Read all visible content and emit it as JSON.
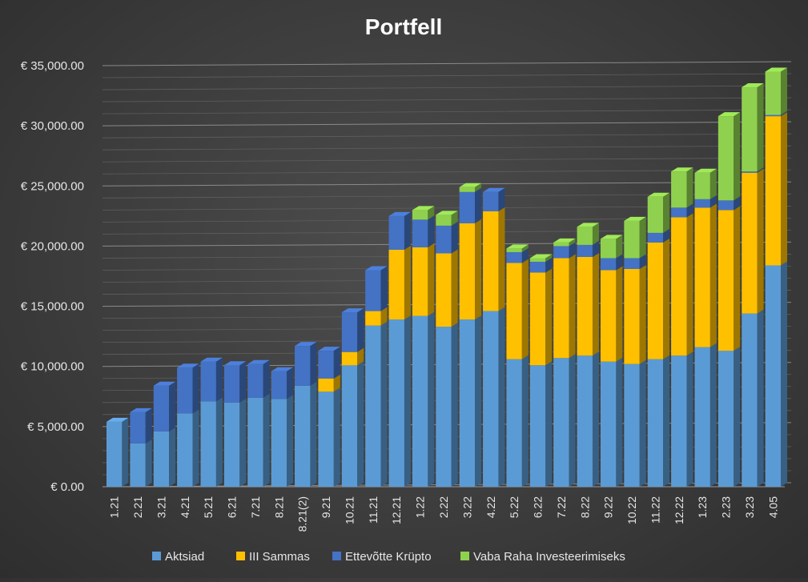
{
  "chart_data": {
    "type": "bar",
    "stacked": true,
    "title": "Portfell",
    "xlabel": "",
    "ylabel": "",
    "ylim": [
      0,
      35000
    ],
    "y_ticks": [
      0,
      5000,
      10000,
      15000,
      20000,
      25000,
      30000,
      35000
    ],
    "y_tick_labels": [
      "€ 0.00",
      "€ 5,000.00",
      "€ 10,000.00",
      "€ 15,000.00",
      "€ 20,000.00",
      "€ 25,000.00",
      "€ 30,000.00",
      "€ 35,000.00"
    ],
    "grid": true,
    "legend_position": "bottom",
    "categories": [
      "1.21",
      "2.21",
      "3.21",
      "4.21",
      "5.21",
      "6.21",
      "7.21",
      "8.21",
      "8.21(2)",
      "9.21",
      "10.21",
      "11.21",
      "12.21",
      "1.22",
      "2.22",
      "3.22",
      "4.22",
      "5.22",
      "6.22",
      "7.22",
      "8.22",
      "9.22",
      "10.22",
      "11.22",
      "12.22",
      "1.23",
      "2.23",
      "3.23",
      "4.05"
    ],
    "series": [
      {
        "name": "Aktsiad",
        "color": "#5b9bd5",
        "values": [
          5400,
          3600,
          4600,
          6100,
          7100,
          7000,
          7400,
          7300,
          8400,
          7900,
          10100,
          13400,
          13900,
          14200,
          13300,
          13900,
          14600,
          10600,
          10100,
          10700,
          10900,
          10400,
          10200,
          10600,
          10900,
          11600,
          11300,
          14400,
          18400
        ]
      },
      {
        "name": "III Sammas",
        "color": "#ffc000",
        "values": [
          0,
          0,
          0,
          0,
          0,
          0,
          0,
          0,
          0,
          1100,
          1100,
          1200,
          5800,
          5700,
          6100,
          8000,
          8300,
          8000,
          7700,
          8300,
          8200,
          7600,
          7900,
          9700,
          11500,
          11600,
          11700,
          11700,
          12400
        ]
      },
      {
        "name": "Ettevõtte Krüpto",
        "color": "#4472c4",
        "values": [
          0,
          2600,
          3800,
          3800,
          3300,
          3100,
          2800,
          2300,
          3300,
          2300,
          3300,
          3400,
          2800,
          2300,
          2300,
          2600,
          1600,
          900,
          900,
          1000,
          1000,
          1000,
          900,
          800,
          800,
          700,
          800,
          100,
          100
        ]
      },
      {
        "name": "Vaba Raha Investeerimiseks",
        "color": "#8fd14f",
        "values": [
          0,
          0,
          0,
          0,
          0,
          0,
          0,
          0,
          0,
          0,
          0,
          0,
          0,
          800,
          900,
          400,
          0,
          300,
          300,
          300,
          1500,
          1600,
          3100,
          3000,
          3000,
          2200,
          7000,
          7000,
          3600
        ]
      }
    ]
  }
}
